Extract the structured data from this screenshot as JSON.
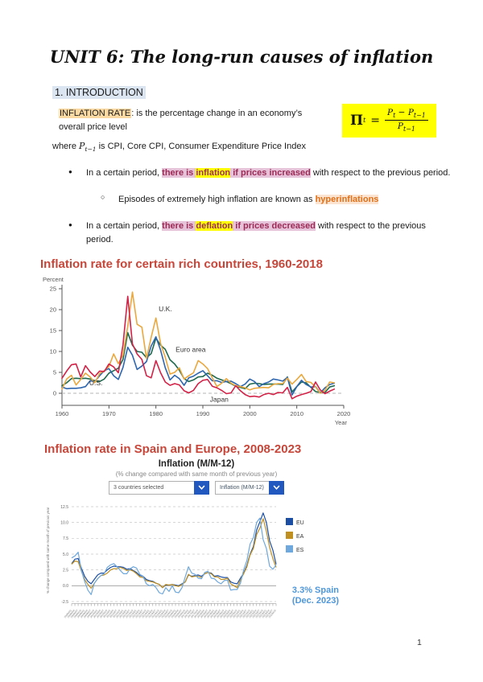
{
  "title": "UNIT 6: The long-run causes of inflation",
  "section_heading": "1. INTRODUCTION",
  "definition": {
    "term": "INFLATION RATE",
    "text": ": is the percentage change in an economy’s overall price level"
  },
  "formula": {
    "pi": "Π",
    "pi_sub": "t",
    "equals": "=",
    "num_p1": "P",
    "num_p1_sub": "t",
    "minus": "−",
    "num_p2": "P",
    "num_p2_sub": "t−1",
    "den_p": "P",
    "den_p_sub": "t−1"
  },
  "where_line": {
    "pre": "where ",
    "var": "P",
    "var_sub": "t−1",
    "post": " is CPI, Core CPI, Consumer Expenditure Price Index"
  },
  "bullets": {
    "b1": {
      "pre": "In a certain period, ",
      "hl_pink1": "there is ",
      "hl_yellow": "inflation",
      "hl_pink2": " if prices increased",
      "post": " with respect to the previous period."
    },
    "sub": {
      "pre": "Episodes of extremely high inflation are known as ",
      "term": "hyperinflations"
    },
    "b2": {
      "pre": "In a certain period, ",
      "hl_pink1": "there is ",
      "hl_yellow": "deflation",
      "hl_pink2": " if prices decreased",
      "post": " with respect to the previous period."
    }
  },
  "rich_chart_heading": "Inflation rate for certain rich countries, 1960-2018",
  "europe_chart_heading": "Inflation rate in Spain and Europe, 2008-2023",
  "europe_chart": {
    "title": "Inflation (M/M-12)",
    "subtitle": "(% change compared with same month of previous year)",
    "country_dropdown": "3 countries selected",
    "indicator_dropdown": "Inflation (M/M-12)"
  },
  "page_number": "1",
  "colors": {
    "heading_red": "#c7463a",
    "section_highlight": "#dbe5f1",
    "term_highlight": "#fbd9a2",
    "formula_highlight": "#ffff00",
    "pink_highlight": "#e6c3d8",
    "berry_text": "#9c2b57",
    "hyperinflation_text": "#e07019",
    "dropdown_blue": "#2058c0",
    "annotation_blue": "#4e97db"
  },
  "chart_data": [
    {
      "type": "line",
      "title": "Inflation rate for certain rich countries, 1960-2018",
      "ylabel": "Percent",
      "xlabel": "Year",
      "x_start": 1960,
      "x_step": 1,
      "xlim": [
        1960,
        2020
      ],
      "ylim": [
        -3,
        25
      ],
      "yticks": [
        0,
        5,
        10,
        15,
        20,
        25
      ],
      "xticks": [
        1960,
        1970,
        1980,
        1990,
        2000,
        2010,
        2020
      ],
      "zero_line": "dashed",
      "grid": false,
      "series": [
        {
          "name": "Euro area",
          "color": "#1f6a4e",
          "values": [
            1.8,
            2.5,
            3.5,
            3.6,
            3.5,
            3.6,
            3.4,
            3.0,
            2.8,
            3.4,
            4.8,
            5.4,
            6.0,
            8.1,
            14.5,
            11.5,
            10.0,
            9.8,
            8.5,
            9.5,
            13.2,
            11.5,
            10.5,
            8.0,
            7.0,
            5.5,
            3.5,
            2.8,
            3.2,
            3.9,
            4.0,
            4.8,
            4.3,
            3.6,
            3.2,
            2.8,
            2.3,
            1.7,
            1.4,
            1.1,
            2.2,
            2.4,
            2.3,
            2.1,
            2.2,
            2.2,
            2.2,
            2.1,
            3.9,
            0.3,
            1.6,
            2.7,
            2.5,
            1.4,
            0.4,
            0.2,
            0.2,
            1.5,
            1.8
          ]
        },
        {
          "name": "U.S.",
          "color": "#2f66ae",
          "values": [
            1.5,
            1.1,
            1.2,
            1.2,
            1.3,
            1.6,
            3.0,
            2.8,
            4.2,
            5.4,
            5.9,
            4.2,
            3.3,
            6.2,
            11.0,
            9.1,
            5.7,
            6.5,
            7.6,
            11.3,
            13.5,
            10.3,
            6.1,
            3.2,
            4.3,
            3.5,
            1.9,
            3.7,
            4.1,
            4.8,
            5.4,
            4.2,
            3.0,
            3.0,
            2.6,
            2.8,
            2.9,
            2.3,
            1.6,
            2.2,
            3.4,
            2.8,
            1.6,
            2.3,
            2.7,
            3.4,
            3.2,
            2.9,
            3.8,
            -0.4,
            1.6,
            3.1,
            2.1,
            1.5,
            1.6,
            0.1,
            1.3,
            2.1,
            2.4
          ]
        },
        {
          "name": "U.K.",
          "color": "#eaa83e",
          "values": [
            1.0,
            3.4,
            4.3,
            2.0,
            3.3,
            4.8,
            3.9,
            2.5,
            4.7,
            5.4,
            6.4,
            9.4,
            7.1,
            9.2,
            16.0,
            24.2,
            16.5,
            15.8,
            8.3,
            13.4,
            18.0,
            11.9,
            8.6,
            4.6,
            5.0,
            6.1,
            3.4,
            4.2,
            4.9,
            7.8,
            7.0,
            5.9,
            3.7,
            1.6,
            2.4,
            3.5,
            2.4,
            1.8,
            1.6,
            1.3,
            0.8,
            1.2,
            1.3,
            1.4,
            1.3,
            2.1,
            2.3,
            2.3,
            3.6,
            2.2,
            3.3,
            4.5,
            2.8,
            2.6,
            1.5,
            0.0,
            0.7,
            2.7,
            2.5
          ]
        },
        {
          "name": "Japan",
          "color": "#d22247",
          "values": [
            3.6,
            5.3,
            6.8,
            7.0,
            3.9,
            6.6,
            5.1,
            4.0,
            5.3,
            5.2,
            7.0,
            6.3,
            4.9,
            11.6,
            23.2,
            11.8,
            9.4,
            8.1,
            4.2,
            3.7,
            7.8,
            4.9,
            2.7,
            1.9,
            2.3,
            2.0,
            0.6,
            0.1,
            0.7,
            2.3,
            3.1,
            3.3,
            1.7,
            1.3,
            0.7,
            -0.1,
            0.1,
            1.8,
            0.6,
            -0.3,
            -0.8,
            -0.7,
            -0.9,
            -0.3,
            0.0,
            -0.3,
            0.2,
            0.1,
            1.4,
            -1.3,
            -0.7,
            -0.3,
            0.0,
            0.4,
            2.7,
            0.8,
            -0.1,
            0.5,
            1.0
          ]
        }
      ],
      "annotations": [
        {
          "text": "U.K.",
          "x": 1980.6,
          "y": 19.6
        },
        {
          "text": "Euro area",
          "x": 1984.2,
          "y": 9.9
        },
        {
          "text": "U.S.",
          "x": 1965.8,
          "y": 1.9
        },
        {
          "text": "Japan",
          "x": 1991.5,
          "y": -2.0
        }
      ]
    },
    {
      "type": "line",
      "title": "Inflation (M/M-12)",
      "subtitle": "(% change compared with same month of previous year)",
      "ylabel": "% change compared with same month of previous year",
      "x_start_year": 2008,
      "x_end_year": 2023,
      "points_per_year": 4,
      "ylim": [
        -2.5,
        12.5
      ],
      "yticks": [
        -2.5,
        0.0,
        2.5,
        5.0,
        7.5,
        10.0,
        12.5
      ],
      "grid": "dashed",
      "legend_position": "right",
      "series": [
        {
          "name": "EU",
          "color": "#1c4fa4",
          "values": [
            3.5,
            4.2,
            4.3,
            2.8,
            1.5,
            0.7,
            0.3,
            1.0,
            1.7,
            2.0,
            2.0,
            2.5,
            2.9,
            3.1,
            3.0,
            3.0,
            2.9,
            2.6,
            2.7,
            2.4,
            2.1,
            1.6,
            1.5,
            1.0,
            0.8,
            0.7,
            0.4,
            0.2,
            -0.3,
            0.1,
            0.1,
            0.2,
            0.1,
            0.0,
            0.3,
            0.6,
            1.7,
            1.5,
            1.6,
            1.7,
            1.5,
            1.9,
            2.1,
            2.0,
            1.5,
            1.6,
            1.4,
            1.3,
            1.3,
            0.6,
            0.4,
            0.3,
            1.2,
            2.0,
            3.2,
            5.0,
            6.2,
            8.8,
            10.1,
            11.5,
            10.0,
            7.1,
            5.6,
            3.4
          ]
        },
        {
          "name": "EA",
          "color": "#c08f21",
          "values": [
            3.4,
            3.9,
            3.8,
            2.3,
            1.0,
            0.2,
            -0.4,
            0.4,
            1.1,
            1.6,
            1.7,
            2.0,
            2.5,
            2.7,
            2.7,
            2.9,
            2.7,
            2.4,
            2.5,
            2.3,
            1.9,
            1.4,
            1.3,
            0.8,
            0.7,
            0.6,
            0.4,
            0.2,
            -0.3,
            0.2,
            0.1,
            0.2,
            0.0,
            -0.1,
            0.2,
            0.6,
            1.8,
            1.4,
            1.5,
            1.5,
            1.3,
            1.9,
            2.1,
            1.9,
            1.4,
            1.4,
            1.0,
            1.0,
            1.2,
            0.3,
            0.0,
            -0.3,
            0.9,
            1.9,
            3.0,
            4.9,
            5.9,
            8.1,
            9.1,
            10.6,
            8.6,
            6.1,
            4.3,
            2.9
          ]
        },
        {
          "name": "ES",
          "color": "#6fa8dc",
          "values": [
            4.4,
            4.7,
            5.3,
            2.4,
            0.7,
            -0.7,
            -1.4,
            0.4,
            1.1,
            1.6,
            1.9,
            2.9,
            3.3,
            3.5,
            3.0,
            2.4,
            1.9,
            1.9,
            2.7,
            3.0,
            2.8,
            1.8,
            1.5,
            0.3,
            0.0,
            0.2,
            -0.3,
            -1.1,
            -1.3,
            -0.3,
            -0.9,
            0.0,
            -1.0,
            -1.1,
            -0.3,
            1.4,
            3.0,
            2.0,
            1.8,
            1.2,
            1.1,
            2.1,
            2.3,
            1.2,
            1.1,
            0.6,
            0.3,
            0.8,
            0.9,
            -0.7,
            -0.6,
            -0.6,
            0.4,
            2.5,
            4.0,
            6.6,
            7.6,
            10.0,
            10.7,
            7.3,
            5.9,
            3.1,
            2.6,
            3.3
          ]
        }
      ],
      "annotation": {
        "line1": "3.3% Spain",
        "line2": "(Dec. 2023)",
        "color": "#4e97db"
      }
    }
  ]
}
